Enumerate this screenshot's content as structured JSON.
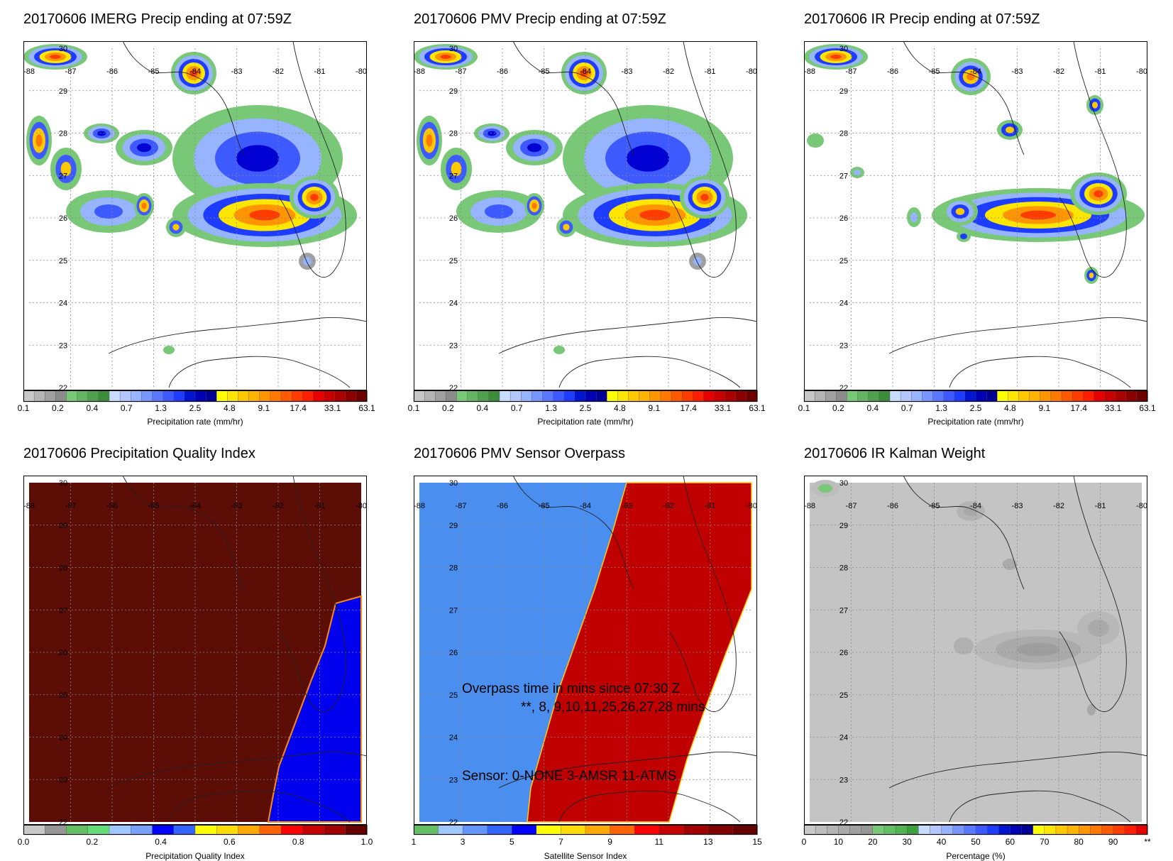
{
  "panels": [
    {
      "title": "20170606 IMERG Precip ending at 07:59Z"
    },
    {
      "title": "20170606 PMV Precip ending at 07:59Z"
    },
    {
      "title": "20170606 IR Precip ending at 07:59Z"
    },
    {
      "title": "20170606 Precipitation Quality Index"
    },
    {
      "title": "20170606 PMV Sensor Overpass"
    },
    {
      "title": "20170606 IR Kalman Weight"
    }
  ],
  "lon_ticks": [
    "-88",
    "-87",
    "-86",
    "-85",
    "-84",
    "-83",
    "-82",
    "-81",
    "-80"
  ],
  "lat_ticks": [
    "30",
    "29",
    "28",
    "27",
    "26",
    "25",
    "24",
    "23",
    "22"
  ],
  "precip_colorbar": {
    "label": "Precipitation rate (mm/hr)",
    "ticks": [
      "0.1",
      "0.2",
      "0.4",
      "0.7",
      "1.3",
      "2.5",
      "4.8",
      "9.1",
      "17.4",
      "33.1",
      "63.1"
    ],
    "colors": [
      "#c8c8c8",
      "#b4b4b4",
      "#a0a0a0",
      "#8c8c8c",
      "#78c878",
      "#64b464",
      "#50a050",
      "#3c8c3c",
      "#c8dcff",
      "#b4c8ff",
      "#96b4ff",
      "#7896ff",
      "#5a78ff",
      "#3c5aff",
      "#1e3cff",
      "#0014d2",
      "#0000b4",
      "#000096",
      "#ffff00",
      "#ffe600",
      "#ffc800",
      "#ffb400",
      "#ff9600",
      "#ff7800",
      "#ff5a00",
      "#ff3c00",
      "#ff1e00",
      "#e60000",
      "#c80000",
      "#aa0000",
      "#8c0000",
      "#6e0000"
    ]
  },
  "pqi_colorbar": {
    "label": "Precipitation Quality Index",
    "ticks": [
      "0.0",
      "0.2",
      "0.4",
      "0.6",
      "0.8",
      "1.0"
    ],
    "colors": [
      "#c8c8c8",
      "#969696",
      "#64be64",
      "#64dc78",
      "#a0c8ff",
      "#78a0ff",
      "#0000ff",
      "#3264ff",
      "#ffff00",
      "#ffdc00",
      "#ffaa00",
      "#ff6400",
      "#ff0000",
      "#c80000",
      "#a00000",
      "#640000"
    ]
  },
  "sensor_colorbar": {
    "label": "Satellite Sensor Index",
    "ticks": [
      "1",
      "3",
      "5",
      "7",
      "9",
      "11",
      "13",
      "15"
    ],
    "colors": [
      "#64be64",
      "#a0c8ff",
      "#6496ff",
      "#3264ff",
      "#0000ff",
      "#ffff00",
      "#ffdc00",
      "#ffaa00",
      "#ff6400",
      "#ff0000",
      "#c80000",
      "#a00000",
      "#800000",
      "#640000"
    ]
  },
  "kalman_colorbar": {
    "label": "Percentage (%)",
    "ticks": [
      "0",
      "10",
      "20",
      "30",
      "40",
      "50",
      "60",
      "70",
      "80",
      "90",
      "**"
    ],
    "colors": [
      "#c8c8c8",
      "#bebebe",
      "#b4b4b4",
      "#aaaaaa",
      "#a0a0a0",
      "#969696",
      "#78c878",
      "#64be64",
      "#50b450",
      "#3ca03c",
      "#c8dcff",
      "#b4c8ff",
      "#96b4ff",
      "#7896ff",
      "#5a78ff",
      "#3c5aff",
      "#1e3cff",
      "#0014d2",
      "#0000b4",
      "#000096",
      "#ffff00",
      "#ffe600",
      "#ffc800",
      "#ffb400",
      "#ff9600",
      "#ff7800",
      "#ff5a00",
      "#ff3c00",
      "#ff1e00",
      "#e60000"
    ]
  },
  "overpass": {
    "line1": "Overpass time in mins since 07:30 Z",
    "line2": "**, 8, 9,10,11,25,26,27,28 mins",
    "sensor_line": "Sensor:   0-NONE  3-AMSR 11-ATMS"
  },
  "colors": {
    "pqi_brown": "#5c0d06",
    "pqi_blue": "#0000ee",
    "sensor_blue": "#4a8ef0",
    "sensor_red": "#c00000",
    "kalman_gray": "#c4c4c4"
  }
}
